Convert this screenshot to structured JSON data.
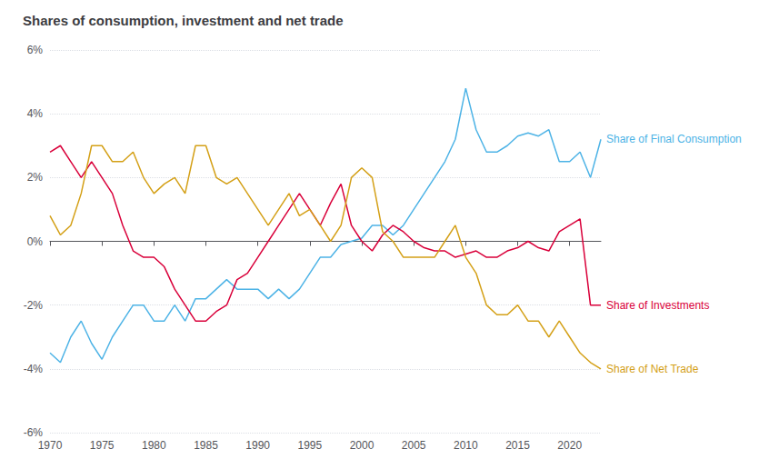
{
  "chart_data": {
    "type": "line",
    "title": "Shares of consumption, investment and net trade",
    "x": [
      1970,
      1971,
      1972,
      1973,
      1974,
      1975,
      1976,
      1977,
      1978,
      1979,
      1980,
      1981,
      1982,
      1983,
      1984,
      1985,
      1986,
      1987,
      1988,
      1989,
      1990,
      1991,
      1992,
      1993,
      1994,
      1995,
      1996,
      1997,
      1998,
      1999,
      2000,
      2001,
      2002,
      2003,
      2004,
      2005,
      2006,
      2007,
      2008,
      2009,
      2010,
      2011,
      2012,
      2013,
      2014,
      2015,
      2016,
      2017,
      2018,
      2019,
      2020,
      2021,
      2022,
      2023
    ],
    "series": [
      {
        "name": "Share of Final Consumption",
        "color": "#4db3e6",
        "values": [
          -3.5,
          -3.8,
          -3.0,
          -2.5,
          -3.2,
          -3.7,
          -3.0,
          -2.5,
          -2.0,
          -2.0,
          -2.5,
          -2.5,
          -2.0,
          -2.5,
          -1.8,
          -1.8,
          -1.5,
          -1.2,
          -1.5,
          -1.5,
          -1.5,
          -1.8,
          -1.5,
          -1.8,
          -1.5,
          -1.0,
          -0.5,
          -0.5,
          -0.1,
          0.0,
          0.1,
          0.5,
          0.5,
          0.2,
          0.5,
          1.0,
          1.5,
          2.0,
          2.5,
          3.2,
          4.8,
          3.5,
          2.8,
          2.8,
          3.0,
          3.3,
          3.4,
          3.3,
          3.5,
          2.5,
          2.5,
          2.8,
          2.0,
          3.2
        ]
      },
      {
        "name": "Share of Investments",
        "color": "#d9003a",
        "values": [
          2.8,
          3.0,
          2.5,
          2.0,
          2.5,
          2.0,
          1.5,
          0.5,
          -0.3,
          -0.5,
          -0.5,
          -0.8,
          -1.5,
          -2.0,
          -2.5,
          -2.5,
          -2.2,
          -2.0,
          -1.2,
          -1.0,
          -0.5,
          0.0,
          0.5,
          1.0,
          1.5,
          1.0,
          0.5,
          1.2,
          1.8,
          0.5,
          0.0,
          -0.3,
          0.2,
          0.5,
          0.3,
          0.0,
          -0.2,
          -0.3,
          -0.3,
          -0.5,
          -0.4,
          -0.3,
          -0.5,
          -0.5,
          -0.3,
          -0.2,
          0.0,
          -0.2,
          -0.3,
          0.3,
          0.5,
          0.7,
          -2.0,
          -2.0
        ]
      },
      {
        "name": "Share of Net Trade",
        "color": "#d4a017",
        "values": [
          0.8,
          0.2,
          0.5,
          1.5,
          3.0,
          3.0,
          2.5,
          2.5,
          2.8,
          2.0,
          1.5,
          1.8,
          2.0,
          1.5,
          3.0,
          3.0,
          2.0,
          1.8,
          2.0,
          1.5,
          1.0,
          0.5,
          1.0,
          1.5,
          0.8,
          1.0,
          0.5,
          0.0,
          0.5,
          2.0,
          2.3,
          2.0,
          0.3,
          0.0,
          -0.5,
          -0.5,
          -0.5,
          -0.5,
          0.0,
          0.5,
          -0.5,
          -1.0,
          -2.0,
          -2.3,
          -2.3,
          -2.0,
          -2.5,
          -2.5,
          -3.0,
          -2.5,
          -3.0,
          -3.5,
          -3.8,
          -4.0
        ]
      }
    ],
    "xlim": [
      1970,
      2023
    ],
    "xticks": [
      1970,
      1975,
      1980,
      1985,
      1990,
      1995,
      2000,
      2005,
      2010,
      2015,
      2020
    ],
    "ylim": [
      -6,
      6
    ],
    "yticks": [
      {
        "value": -6,
        "label": "-6%"
      },
      {
        "value": -4,
        "label": "-4%"
      },
      {
        "value": -2,
        "label": "-2%"
      },
      {
        "value": 0,
        "label": "0%"
      },
      {
        "value": 2,
        "label": "2%"
      },
      {
        "value": 4,
        "label": "4%"
      },
      {
        "value": 6,
        "label": "6%"
      }
    ],
    "grid": true
  }
}
